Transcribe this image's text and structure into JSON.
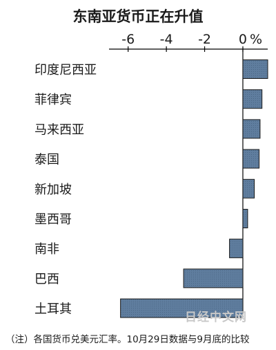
{
  "chart_data": {
    "type": "bar",
    "orientation": "horizontal",
    "title": "东南亚货币正在升值",
    "unit_label": "%",
    "categories": [
      "印度尼西亚",
      "菲律宾",
      "马来西亚",
      "泰国",
      "新加坡",
      "墨西哥",
      "南非",
      "巴西",
      "土耳其"
    ],
    "values": [
      1.3,
      1.0,
      0.9,
      0.85,
      0.6,
      0.25,
      -0.7,
      -3.1,
      -6.4
    ],
    "xlim": [
      -7,
      1.3
    ],
    "ticks": [
      -6,
      -4,
      -2,
      0
    ],
    "tick_labels": [
      "-6",
      "-4",
      "-2",
      "0"
    ],
    "bar_color": "#5f7d9e",
    "axis_position": "top",
    "grid": false,
    "legend": "none"
  },
  "footnote": "（注）各国货币兑美元汇率。10月29日数据与9月底的比较",
  "watermark": "日经中文网"
}
